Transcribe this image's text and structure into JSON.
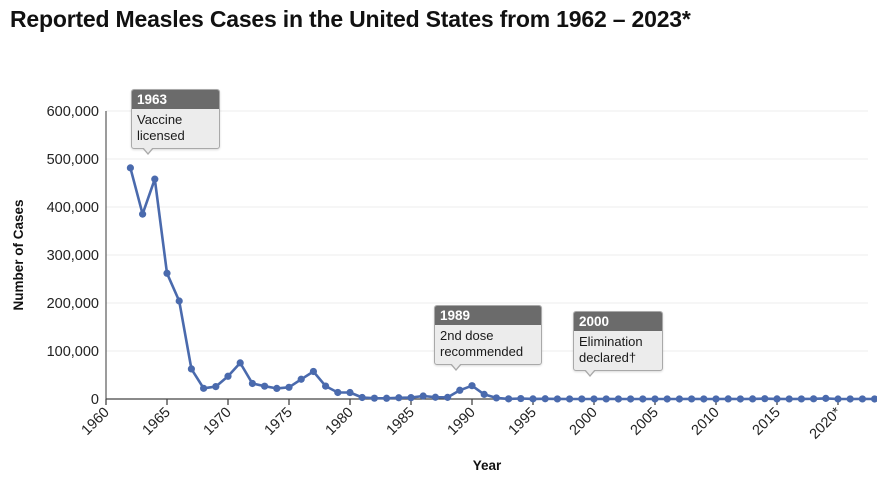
{
  "chart_data": {
    "type": "line",
    "title": "Reported Measles Cases in the United States from 1962 – 2023*",
    "xlabel": "Year",
    "ylabel": "Number of Cases",
    "xlim": [
      1960,
      2023
    ],
    "ylim": [
      0,
      600000
    ],
    "grid": true,
    "x_ticks": [
      {
        "value": 1960,
        "label": "1960"
      },
      {
        "value": 1965,
        "label": "1965"
      },
      {
        "value": 1970,
        "label": "1970"
      },
      {
        "value": 1975,
        "label": "1975"
      },
      {
        "value": 1980,
        "label": "1980"
      },
      {
        "value": 1985,
        "label": "1985"
      },
      {
        "value": 1990,
        "label": "1990"
      },
      {
        "value": 1995,
        "label": "1995"
      },
      {
        "value": 2000,
        "label": "2000"
      },
      {
        "value": 2005,
        "label": "2005"
      },
      {
        "value": 2010,
        "label": "2010"
      },
      {
        "value": 2015,
        "label": "2015"
      },
      {
        "value": 2020,
        "label": "2020*"
      }
    ],
    "y_ticks": [
      {
        "value": 0,
        "label": "0"
      },
      {
        "value": 100000,
        "label": "100,000"
      },
      {
        "value": 200000,
        "label": "200,000"
      },
      {
        "value": 300000,
        "label": "300,000"
      },
      {
        "value": 400000,
        "label": "400,000"
      },
      {
        "value": 500000,
        "label": "500,000"
      },
      {
        "value": 600000,
        "label": "600,000"
      }
    ],
    "series": [
      {
        "name": "Reported measles cases",
        "color": "#4a6aad",
        "x": [
          1962,
          1963,
          1964,
          1965,
          1966,
          1967,
          1968,
          1969,
          1970,
          1971,
          1972,
          1973,
          1974,
          1975,
          1976,
          1977,
          1978,
          1979,
          1980,
          1981,
          1982,
          1983,
          1984,
          1985,
          1986,
          1987,
          1988,
          1989,
          1990,
          1991,
          1992,
          1993,
          1994,
          1995,
          1996,
          1997,
          1998,
          1999,
          2000,
          2001,
          2002,
          2003,
          2004,
          2005,
          2006,
          2007,
          2008,
          2009,
          2010,
          2011,
          2012,
          2013,
          2014,
          2015,
          2016,
          2017,
          2018,
          2019,
          2020,
          2021,
          2022,
          2023
        ],
        "values": [
          481530,
          385156,
          458083,
          261904,
          204136,
          62705,
          22231,
          25826,
          47351,
          75290,
          32275,
          26690,
          22094,
          24374,
          41126,
          57345,
          26871,
          13597,
          13506,
          3124,
          1714,
          1497,
          2587,
          2822,
          6282,
          3655,
          3396,
          18193,
          27786,
          9643,
          2237,
          312,
          963,
          281,
          508,
          138,
          100,
          100,
          86,
          116,
          44,
          56,
          37,
          66,
          55,
          43,
          140,
          71,
          63,
          220,
          55,
          187,
          667,
          188,
          86,
          120,
          375,
          1274,
          13,
          49,
          121,
          59
        ]
      }
    ],
    "annotations": [
      {
        "year": "1963",
        "text": "Vaccine\nlicensed"
      },
      {
        "year": "1989",
        "text": "2nd dose\nrecommended"
      },
      {
        "year": "2000",
        "text": "Elimination\ndeclared†"
      }
    ]
  }
}
